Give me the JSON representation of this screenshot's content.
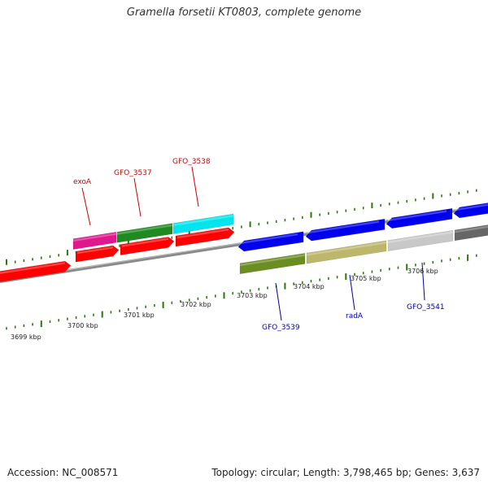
{
  "title": "Gramella forsetii KT0803, complete genome",
  "footer": {
    "accession": "Accession: NC_008571",
    "summary": "Topology: circular; Length: 3,798,465 bp; Genes: 3,637"
  },
  "colors": {
    "top_label": "#cc0000",
    "bottom_label": "#0000aa",
    "tick": "#2a7a0a",
    "backbone": "#8a8a8a",
    "scale_text": "#222222"
  },
  "scale_labels": [
    "3699 kbp",
    "3700 kbp",
    "3701 kbp",
    "3702 kbp",
    "3703 kbp",
    "3704 kbp",
    "3705 kbp",
    "3706 kbp"
  ],
  "top_gene_labels": [
    "exoA",
    "GFO_3537",
    "GFO_3538"
  ],
  "bottom_gene_labels": [
    "GFO_3539",
    "radA",
    "GFO_3541"
  ],
  "forward_genes": [
    {
      "color": "#e0188c",
      "direction": "forward",
      "track": "outer"
    },
    {
      "color": "#1f8a1f",
      "direction": "forward",
      "track": "outer"
    },
    {
      "color": "#00e5ee",
      "direction": "forward",
      "track": "outer"
    },
    {
      "color": "#ff0000",
      "direction": "forward",
      "track": "inner"
    },
    {
      "color": "#ff0000",
      "direction": "forward",
      "track": "inner"
    },
    {
      "color": "#ff0000",
      "direction": "forward",
      "track": "inner"
    },
    {
      "color": "#ff0000",
      "direction": "forward",
      "track": "inner"
    }
  ],
  "reverse_genes": [
    {
      "color": "#0000ee",
      "direction": "reverse",
      "track": "outer"
    },
    {
      "color": "#0000ee",
      "direction": "reverse",
      "track": "outer"
    },
    {
      "color": "#0000ee",
      "direction": "reverse",
      "track": "outer"
    },
    {
      "color": "#0000ee",
      "direction": "reverse",
      "track": "outer"
    },
    {
      "color": "#6b8e23",
      "direction": "reverse",
      "track": "inner"
    },
    {
      "color": "#bdb76b",
      "direction": "reverse",
      "track": "inner"
    },
    {
      "color": "#c8c8c8",
      "direction": "reverse",
      "track": "inner"
    },
    {
      "color": "#666666",
      "direction": "reverse",
      "track": "inner"
    }
  ]
}
